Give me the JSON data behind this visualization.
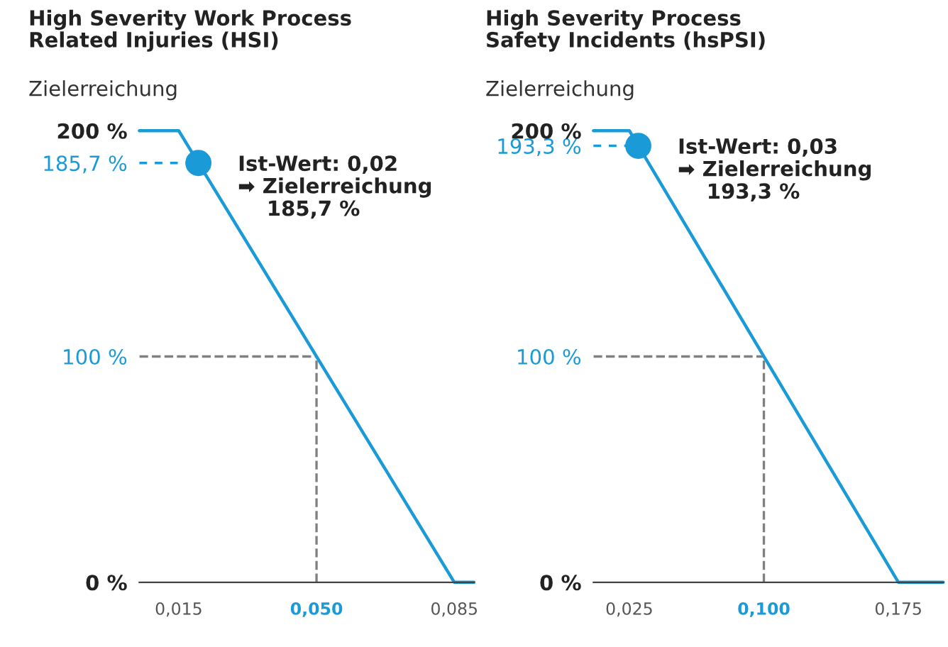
{
  "chart_data": [
    {
      "type": "line",
      "title": "High Severity Work Process\nRelated Injuries (HSI)",
      "ylabel": "Zielerreichung",
      "series": [
        {
          "color": "#1a9ad6",
          "x": [
            0.005,
            0.015,
            0.085,
            0.09
          ],
          "values": [
            200,
            200,
            0,
            0
          ]
        },
        {
          "type": "scatter",
          "color": "#1a9ad6",
          "marker": "circle",
          "x": [
            0.02
          ],
          "values": [
            185.7
          ]
        }
      ],
      "xlim": [
        0.005,
        0.09
      ],
      "ylim": [
        0,
        200
      ],
      "xticks": [
        {
          "value": 0.015,
          "label": "0,015"
        },
        {
          "value": 0.05,
          "label": "0,050"
        },
        {
          "value": 0.085,
          "label": "0,085"
        }
      ],
      "yticks": [
        {
          "value": 0,
          "label": "0 %"
        },
        {
          "value": 100,
          "label": "100 %"
        },
        {
          "value": 185.7,
          "label": "185,7 %"
        },
        {
          "value": 200,
          "label": "200 %"
        }
      ],
      "ref_lines": [
        {
          "axis": "y",
          "value": 100,
          "color": "#808080",
          "line_style": "dashed"
        },
        {
          "axis": "x",
          "value": 0.05,
          "color": "#808080",
          "line_style": "dashed"
        }
      ],
      "annotations": [
        {
          "text": "Ist-Wert: 0,02\n➡ Zielerreichung\n    185,7 %",
          "x": 0.02,
          "y": 185.7
        }
      ],
      "line_style": "solid"
    },
    {
      "type": "line",
      "title": "High Severity Process\nSafety Incidents (hsPSI)",
      "ylabel": "Zielerreichung",
      "series": [
        {
          "color": "#1a9ad6",
          "x": [
            0.005,
            0.025,
            0.175,
            0.2
          ],
          "values": [
            200,
            200,
            0,
            0
          ]
        },
        {
          "type": "scatter",
          "color": "#1a9ad6",
          "marker": "circle",
          "x": [
            0.03
          ],
          "values": [
            193.3
          ]
        }
      ],
      "xlim": [
        0.005,
        0.2
      ],
      "ylim": [
        0,
        200
      ],
      "xticks": [
        {
          "value": 0.025,
          "label": "0,025"
        },
        {
          "value": 0.1,
          "label": "0,100"
        },
        {
          "value": 0.175,
          "label": "0,175"
        }
      ],
      "yticks": [
        {
          "value": 0,
          "label": "0 %"
        },
        {
          "value": 100,
          "label": "100 %"
        },
        {
          "value": 193.3,
          "label": "193,3 %"
        },
        {
          "value": 200,
          "label": "200 %"
        }
      ],
      "ref_lines": [
        {
          "axis": "y",
          "value": 100,
          "color": "#808080",
          "line_style": "dashed"
        },
        {
          "axis": "x",
          "value": 0.1,
          "color": "#808080",
          "line_style": "dashed"
        }
      ],
      "annotations": [
        {
          "text": "Ist-Wert: 0,03\n➡ Zielerreichung\n    193,3 %",
          "x": 0.03,
          "y": 193.3
        }
      ],
      "line_style": "solid"
    }
  ]
}
